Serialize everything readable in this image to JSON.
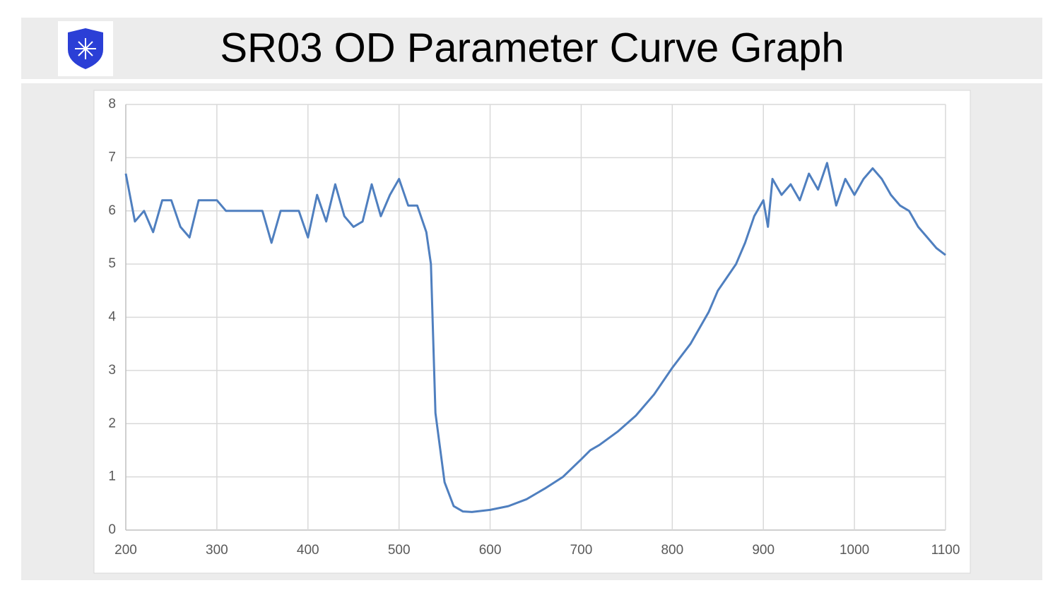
{
  "chart_data": {
    "type": "line",
    "title": "SR03 OD Parameter Curve Graph",
    "x": [
      200,
      210,
      220,
      230,
      240,
      250,
      260,
      270,
      280,
      290,
      300,
      310,
      320,
      330,
      340,
      350,
      360,
      370,
      380,
      390,
      400,
      410,
      420,
      430,
      440,
      450,
      460,
      470,
      480,
      490,
      500,
      510,
      520,
      530,
      535,
      540,
      550,
      560,
      570,
      580,
      590,
      600,
      620,
      640,
      660,
      680,
      700,
      710,
      720,
      740,
      760,
      780,
      800,
      820,
      840,
      850,
      860,
      870,
      880,
      890,
      900,
      905,
      910,
      920,
      930,
      940,
      950,
      960,
      970,
      980,
      990,
      1000,
      1010,
      1020,
      1030,
      1040,
      1050,
      1060,
      1070,
      1080,
      1090,
      1100
    ],
    "values": [
      6.7,
      5.8,
      6.0,
      5.6,
      6.2,
      6.2,
      5.7,
      5.5,
      6.2,
      6.2,
      6.2,
      6.0,
      6.0,
      6.0,
      6.0,
      6.0,
      5.4,
      6.0,
      6.0,
      6.0,
      5.5,
      6.3,
      5.8,
      6.5,
      5.9,
      5.7,
      5.8,
      6.5,
      5.9,
      6.3,
      6.6,
      6.1,
      6.1,
      5.6,
      5.0,
      2.2,
      0.9,
      0.45,
      0.35,
      0.34,
      0.36,
      0.38,
      0.45,
      0.58,
      0.78,
      1.0,
      1.33,
      1.5,
      1.6,
      1.85,
      2.15,
      2.55,
      3.05,
      3.5,
      4.1,
      4.5,
      4.75,
      5.0,
      5.4,
      5.9,
      6.2,
      5.7,
      6.6,
      6.3,
      6.5,
      6.2,
      6.7,
      6.4,
      6.9,
      6.1,
      6.6,
      6.3,
      6.6,
      6.8,
      6.6,
      6.3,
      6.1,
      6.0,
      5.7,
      5.5,
      5.3,
      5.17
    ],
    "color": "#4f7fbf",
    "xlim": [
      200,
      1100
    ],
    "xticks": [
      200,
      300,
      400,
      500,
      600,
      700,
      800,
      900,
      1000,
      1100
    ],
    "ylim": [
      0,
      8
    ],
    "yticks": [
      0,
      1,
      2,
      3,
      4,
      5,
      6,
      7,
      8
    ],
    "grid": true
  }
}
